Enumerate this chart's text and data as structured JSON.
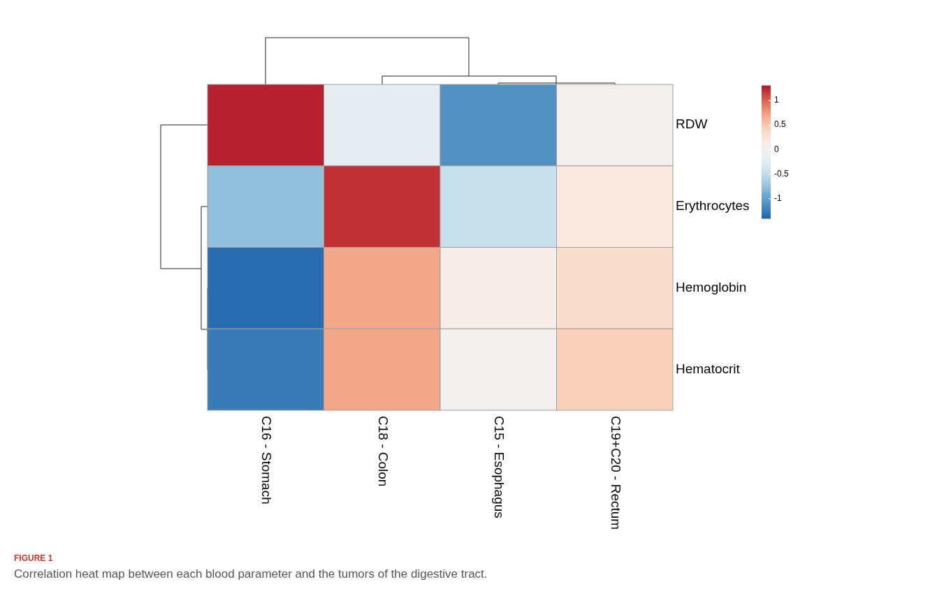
{
  "chart_data": {
    "type": "heatmap",
    "categories": [
      "C16 - Stomach",
      "C18 - Colon",
      "C15 - Esophagus",
      "C19+C20 - Rectum"
    ],
    "y_categories": [
      "RDW",
      "Erythrocytes",
      "Hemoglobin",
      "Hematocrit"
    ],
    "cells": [
      [
        1.27,
        -0.2,
        -1.1,
        0.03
      ],
      [
        -0.75,
        1.2,
        -0.45,
        0.2
      ],
      [
        -1.35,
        0.7,
        0.1,
        0.35
      ],
      [
        -1.25,
        0.7,
        0.0,
        0.45
      ]
    ],
    "clim": [
      -1.4,
      1.3
    ],
    "cticks": [
      -1,
      -0.5,
      0,
      0.5,
      1
    ],
    "annotations": [
      "FIGURE 1",
      "Correlation heat map between each blood parameter and the tumors of the digestive tract."
    ]
  }
}
